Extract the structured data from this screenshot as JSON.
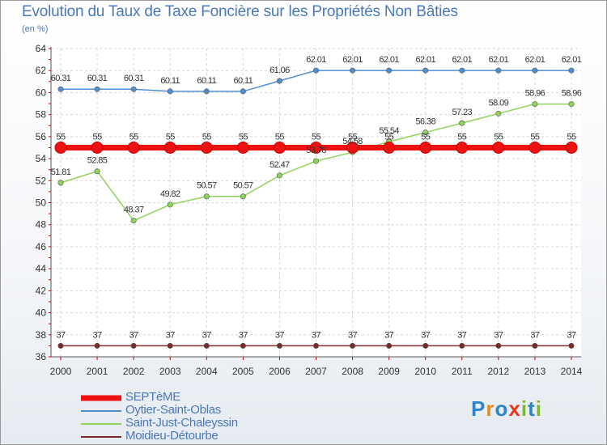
{
  "title": "Evolution du Taux de Taxe Foncière sur les Propriétés Non Bâties",
  "subtitle": "(en %)",
  "chart_data": {
    "type": "line",
    "title": "Evolution du Taux de Taxe Foncière sur les Propriétés Non Bâties",
    "ylabel": "(en %)",
    "xlabel": "",
    "ylim": [
      36,
      64
    ],
    "yticks": [
      "36",
      "38",
      "40",
      "42",
      "44",
      "46",
      "48",
      "50",
      "52",
      "54",
      "56",
      "58",
      "60",
      "62",
      "64"
    ],
    "categories": [
      "2000",
      "2001",
      "2002",
      "2003",
      "2004",
      "2005",
      "2006",
      "2007",
      "2008",
      "2009",
      "2010",
      "2011",
      "2012",
      "2013",
      "2014"
    ],
    "grid": true,
    "series": [
      {
        "name": "SEPTèME",
        "color": "#ee1111",
        "values": [
          55,
          55,
          55,
          55,
          55,
          55,
          55,
          55,
          55,
          55,
          55,
          55,
          55,
          55,
          55
        ],
        "labels": [
          "55",
          "55",
          "55",
          "55",
          "55",
          "55",
          "55",
          "55",
          "55",
          "55",
          "55",
          "55",
          "55",
          "55",
          "55"
        ]
      },
      {
        "name": "Oytier-Saint-Oblas",
        "color": "#4f8fcf",
        "values": [
          60.31,
          60.31,
          60.31,
          60.11,
          60.11,
          60.11,
          61.06,
          62.01,
          62.01,
          62.01,
          62.01,
          62.01,
          62.01,
          62.01,
          62.01
        ],
        "labels": [
          "60.31",
          "60.31",
          "60.31",
          "60.11",
          "60.11",
          "60.11",
          "61.06",
          "62.01",
          "62.01",
          "62.01",
          "62.01",
          "62.01",
          "62.01",
          "62.01",
          "62.01"
        ]
      },
      {
        "name": "Saint-Just-Chaleyssin",
        "color": "#8fd35a",
        "values": [
          51.81,
          52.85,
          48.37,
          49.82,
          50.57,
          50.57,
          52.47,
          53.78,
          54.58,
          55.54,
          56.38,
          57.23,
          58.09,
          58.96,
          58.96
        ],
        "labels": [
          "51.81",
          "52.85",
          "48.37",
          "49.82",
          "50.57",
          "50.57",
          "52.47",
          "53.78",
          "54.58",
          "55.54",
          "56.38",
          "57.23",
          "58.09",
          "58.96",
          "58.96"
        ]
      },
      {
        "name": "Moidieu-Détourbe",
        "color": "#7a2a2a",
        "values": [
          37,
          37,
          37,
          37,
          37,
          37,
          37,
          37,
          37,
          37,
          37,
          37,
          37,
          37,
          37
        ],
        "labels": [
          "37",
          "37",
          "37",
          "37",
          "37",
          "37",
          "37",
          "37",
          "37",
          "37",
          "37",
          "37",
          "37",
          "37",
          "37"
        ]
      }
    ]
  },
  "logo": {
    "letters": [
      "P",
      "r",
      "o",
      "x",
      "i",
      "t",
      "i"
    ],
    "colors": [
      "#2e86c9",
      "#e88a1a",
      "#2e86c9",
      "#e33a1a",
      "#7cb82f",
      "#2e86c9",
      "#7cb82f"
    ]
  }
}
